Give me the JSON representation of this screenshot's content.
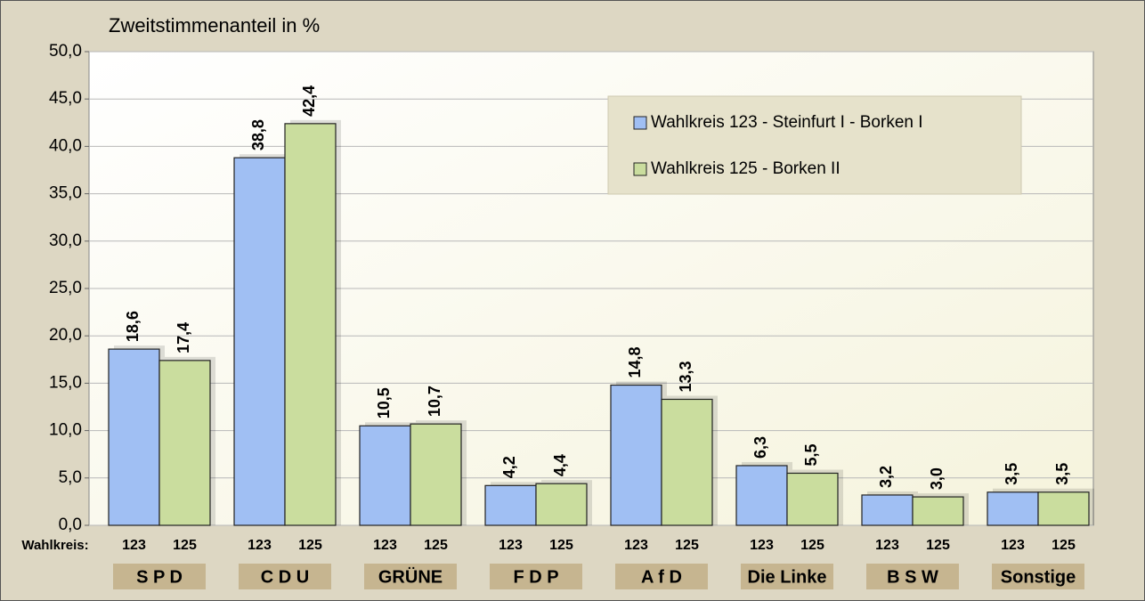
{
  "chart_data": {
    "type": "bar",
    "title": "Zweitstimmenanteil in %",
    "categories": [
      "S P D",
      "C D U",
      "GRÜNE",
      "F D P",
      "A f D",
      "Die Linke",
      "B S W",
      "Sonstige"
    ],
    "x_sublabel_title": "Wahlkreis:",
    "series": [
      {
        "name": "Wahlkreis 123 - Steinfurt I - Borken I",
        "short_name": "123",
        "color": "#a0bff3",
        "values": [
          18.6,
          38.8,
          10.5,
          4.2,
          14.8,
          6.3,
          3.2,
          3.5
        ],
        "value_labels": [
          "18,6",
          "38,8",
          "10,5",
          "4,2",
          "14,8",
          "6,3",
          "3,2",
          "3,5"
        ]
      },
      {
        "name": "Wahlkreis 125 - Borken II",
        "short_name": "125",
        "color": "#cadd9e",
        "values": [
          17.4,
          42.4,
          10.7,
          4.4,
          13.3,
          5.5,
          3.0,
          3.5
        ],
        "value_labels": [
          "17,4",
          "42,4",
          "10,7",
          "4,4",
          "13,3",
          "5,5",
          "3,0",
          "3,5"
        ]
      }
    ],
    "ylim": [
      0,
      50
    ],
    "yticks": [
      {
        "value": 0,
        "label": "0,0"
      },
      {
        "value": 5,
        "label": "5,0"
      },
      {
        "value": 10,
        "label": "10,0"
      },
      {
        "value": 15,
        "label": "15,0"
      },
      {
        "value": 20,
        "label": "20,0"
      },
      {
        "value": 25,
        "label": "25,0"
      },
      {
        "value": 30,
        "label": "30,0"
      },
      {
        "value": 35,
        "label": "35,0"
      },
      {
        "value": 40,
        "label": "40,0"
      },
      {
        "value": 45,
        "label": "45,0"
      },
      {
        "value": 50,
        "label": "50,0"
      }
    ],
    "grid": true,
    "legend": "top-right"
  }
}
